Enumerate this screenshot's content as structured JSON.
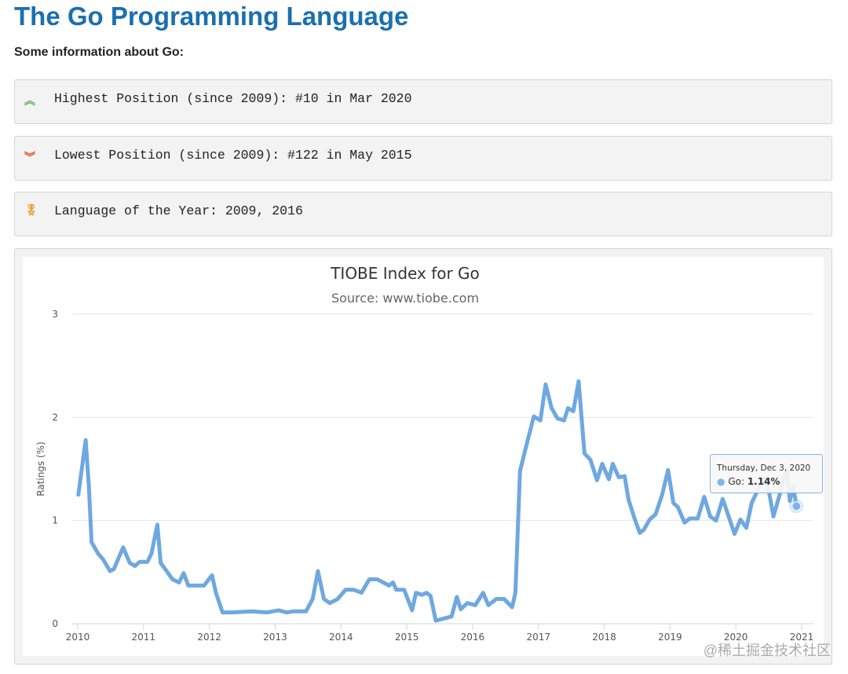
{
  "page": {
    "title": "The Go Programming Language",
    "subtitle": "Some information about Go:"
  },
  "info": [
    {
      "icon": "double-chevron-up-icon",
      "color": "#5cb85c",
      "text": "Highest Position (since 2009): #10 in Mar 2020"
    },
    {
      "icon": "double-chevron-down-icon",
      "color": "#e2542a",
      "text": "Lowest Position (since 2009): #122 in May 2015"
    },
    {
      "icon": "medal-icon",
      "color": "#e8a33b",
      "text": "Language of the Year: 2009, 2016"
    }
  ],
  "tooltip": {
    "date": "Thursday, Dec 3, 2020",
    "series": "Go:",
    "value": "1.14%"
  },
  "watermark": "@稀土掘金技术社区",
  "chart_data": {
    "type": "line",
    "title": "TIOBE Index for Go",
    "subtitle": "Source: www.tiobe.com",
    "xlabel": "",
    "ylabel": "Ratings (%)",
    "xlim": [
      2010,
      2021
    ],
    "ylim": [
      0,
      3
    ],
    "xticks": [
      "2010",
      "2011",
      "2012",
      "2013",
      "2014",
      "2015",
      "2016",
      "2017",
      "2018",
      "2019",
      "2020",
      "2021"
    ],
    "yticks": [
      "0",
      "1",
      "2",
      "3"
    ],
    "grid": true,
    "color": "#6fa8e0",
    "series": [
      {
        "name": "Go",
        "points": [
          [
            2010.01,
            1.25
          ],
          [
            2010.12,
            1.78
          ],
          [
            2010.17,
            1.33
          ],
          [
            2010.21,
            0.79
          ],
          [
            2010.31,
            0.68
          ],
          [
            2010.39,
            0.62
          ],
          [
            2010.49,
            0.51
          ],
          [
            2010.55,
            0.53
          ],
          [
            2010.69,
            0.74
          ],
          [
            2010.79,
            0.59
          ],
          [
            2010.87,
            0.56
          ],
          [
            2010.94,
            0.6
          ],
          [
            2011.06,
            0.6
          ],
          [
            2011.12,
            0.68
          ],
          [
            2011.21,
            0.96
          ],
          [
            2011.26,
            0.59
          ],
          [
            2011.35,
            0.51
          ],
          [
            2011.44,
            0.43
          ],
          [
            2011.54,
            0.4
          ],
          [
            2011.61,
            0.49
          ],
          [
            2011.68,
            0.37
          ],
          [
            2011.8,
            0.37
          ],
          [
            2011.92,
            0.37
          ],
          [
            2012.04,
            0.47
          ],
          [
            2012.1,
            0.3
          ],
          [
            2012.2,
            0.11
          ],
          [
            2012.34,
            0.11
          ],
          [
            2012.64,
            0.12
          ],
          [
            2012.88,
            0.11
          ],
          [
            2013.05,
            0.13
          ],
          [
            2013.17,
            0.11
          ],
          [
            2013.29,
            0.12
          ],
          [
            2013.47,
            0.12
          ],
          [
            2013.57,
            0.24
          ],
          [
            2013.65,
            0.51
          ],
          [
            2013.74,
            0.24
          ],
          [
            2013.83,
            0.2
          ],
          [
            2013.95,
            0.24
          ],
          [
            2014.07,
            0.33
          ],
          [
            2014.19,
            0.33
          ],
          [
            2014.31,
            0.3
          ],
          [
            2014.43,
            0.43
          ],
          [
            2014.55,
            0.43
          ],
          [
            2014.73,
            0.37
          ],
          [
            2014.79,
            0.4
          ],
          [
            2014.84,
            0.33
          ],
          [
            2014.96,
            0.33
          ],
          [
            2015.08,
            0.13
          ],
          [
            2015.14,
            0.3
          ],
          [
            2015.23,
            0.28
          ],
          [
            2015.3,
            0.3
          ],
          [
            2015.36,
            0.27
          ],
          [
            2015.44,
            0.03
          ],
          [
            2015.56,
            0.05
          ],
          [
            2015.68,
            0.07
          ],
          [
            2015.76,
            0.26
          ],
          [
            2015.82,
            0.14
          ],
          [
            2015.92,
            0.2
          ],
          [
            2016.04,
            0.18
          ],
          [
            2016.16,
            0.3
          ],
          [
            2016.24,
            0.18
          ],
          [
            2016.36,
            0.24
          ],
          [
            2016.48,
            0.24
          ],
          [
            2016.6,
            0.16
          ],
          [
            2016.65,
            0.3
          ],
          [
            2016.72,
            1.48
          ],
          [
            2016.81,
            1.71
          ],
          [
            2016.93,
            2.01
          ],
          [
            2017.03,
            1.97
          ],
          [
            2017.11,
            2.32
          ],
          [
            2017.2,
            2.09
          ],
          [
            2017.29,
            1.99
          ],
          [
            2017.39,
            1.97
          ],
          [
            2017.45,
            2.09
          ],
          [
            2017.53,
            2.06
          ],
          [
            2017.61,
            2.35
          ],
          [
            2017.7,
            1.65
          ],
          [
            2017.79,
            1.59
          ],
          [
            2017.89,
            1.39
          ],
          [
            2017.97,
            1.55
          ],
          [
            2018.07,
            1.4
          ],
          [
            2018.13,
            1.55
          ],
          [
            2018.22,
            1.42
          ],
          [
            2018.31,
            1.43
          ],
          [
            2018.37,
            1.2
          ],
          [
            2018.46,
            1.02
          ],
          [
            2018.54,
            0.88
          ],
          [
            2018.6,
            0.91
          ],
          [
            2018.69,
            1.01
          ],
          [
            2018.78,
            1.06
          ],
          [
            2018.88,
            1.25
          ],
          [
            2018.97,
            1.49
          ],
          [
            2019.05,
            1.17
          ],
          [
            2019.12,
            1.13
          ],
          [
            2019.22,
            0.98
          ],
          [
            2019.3,
            1.02
          ],
          [
            2019.42,
            1.02
          ],
          [
            2019.52,
            1.23
          ],
          [
            2019.61,
            1.04
          ],
          [
            2019.7,
            1.0
          ],
          [
            2019.8,
            1.21
          ],
          [
            2019.88,
            1.06
          ],
          [
            2019.98,
            0.87
          ],
          [
            2020.07,
            1.01
          ],
          [
            2020.16,
            0.93
          ],
          [
            2020.24,
            1.17
          ],
          [
            2020.33,
            1.29
          ],
          [
            2020.42,
            1.4
          ],
          [
            2020.5,
            1.29
          ],
          [
            2020.57,
            1.04
          ],
          [
            2020.67,
            1.26
          ],
          [
            2020.72,
            1.4
          ],
          [
            2020.78,
            1.48
          ],
          [
            2020.82,
            1.19
          ],
          [
            2020.87,
            1.33
          ],
          [
            2020.92,
            1.14
          ]
        ]
      }
    ]
  }
}
